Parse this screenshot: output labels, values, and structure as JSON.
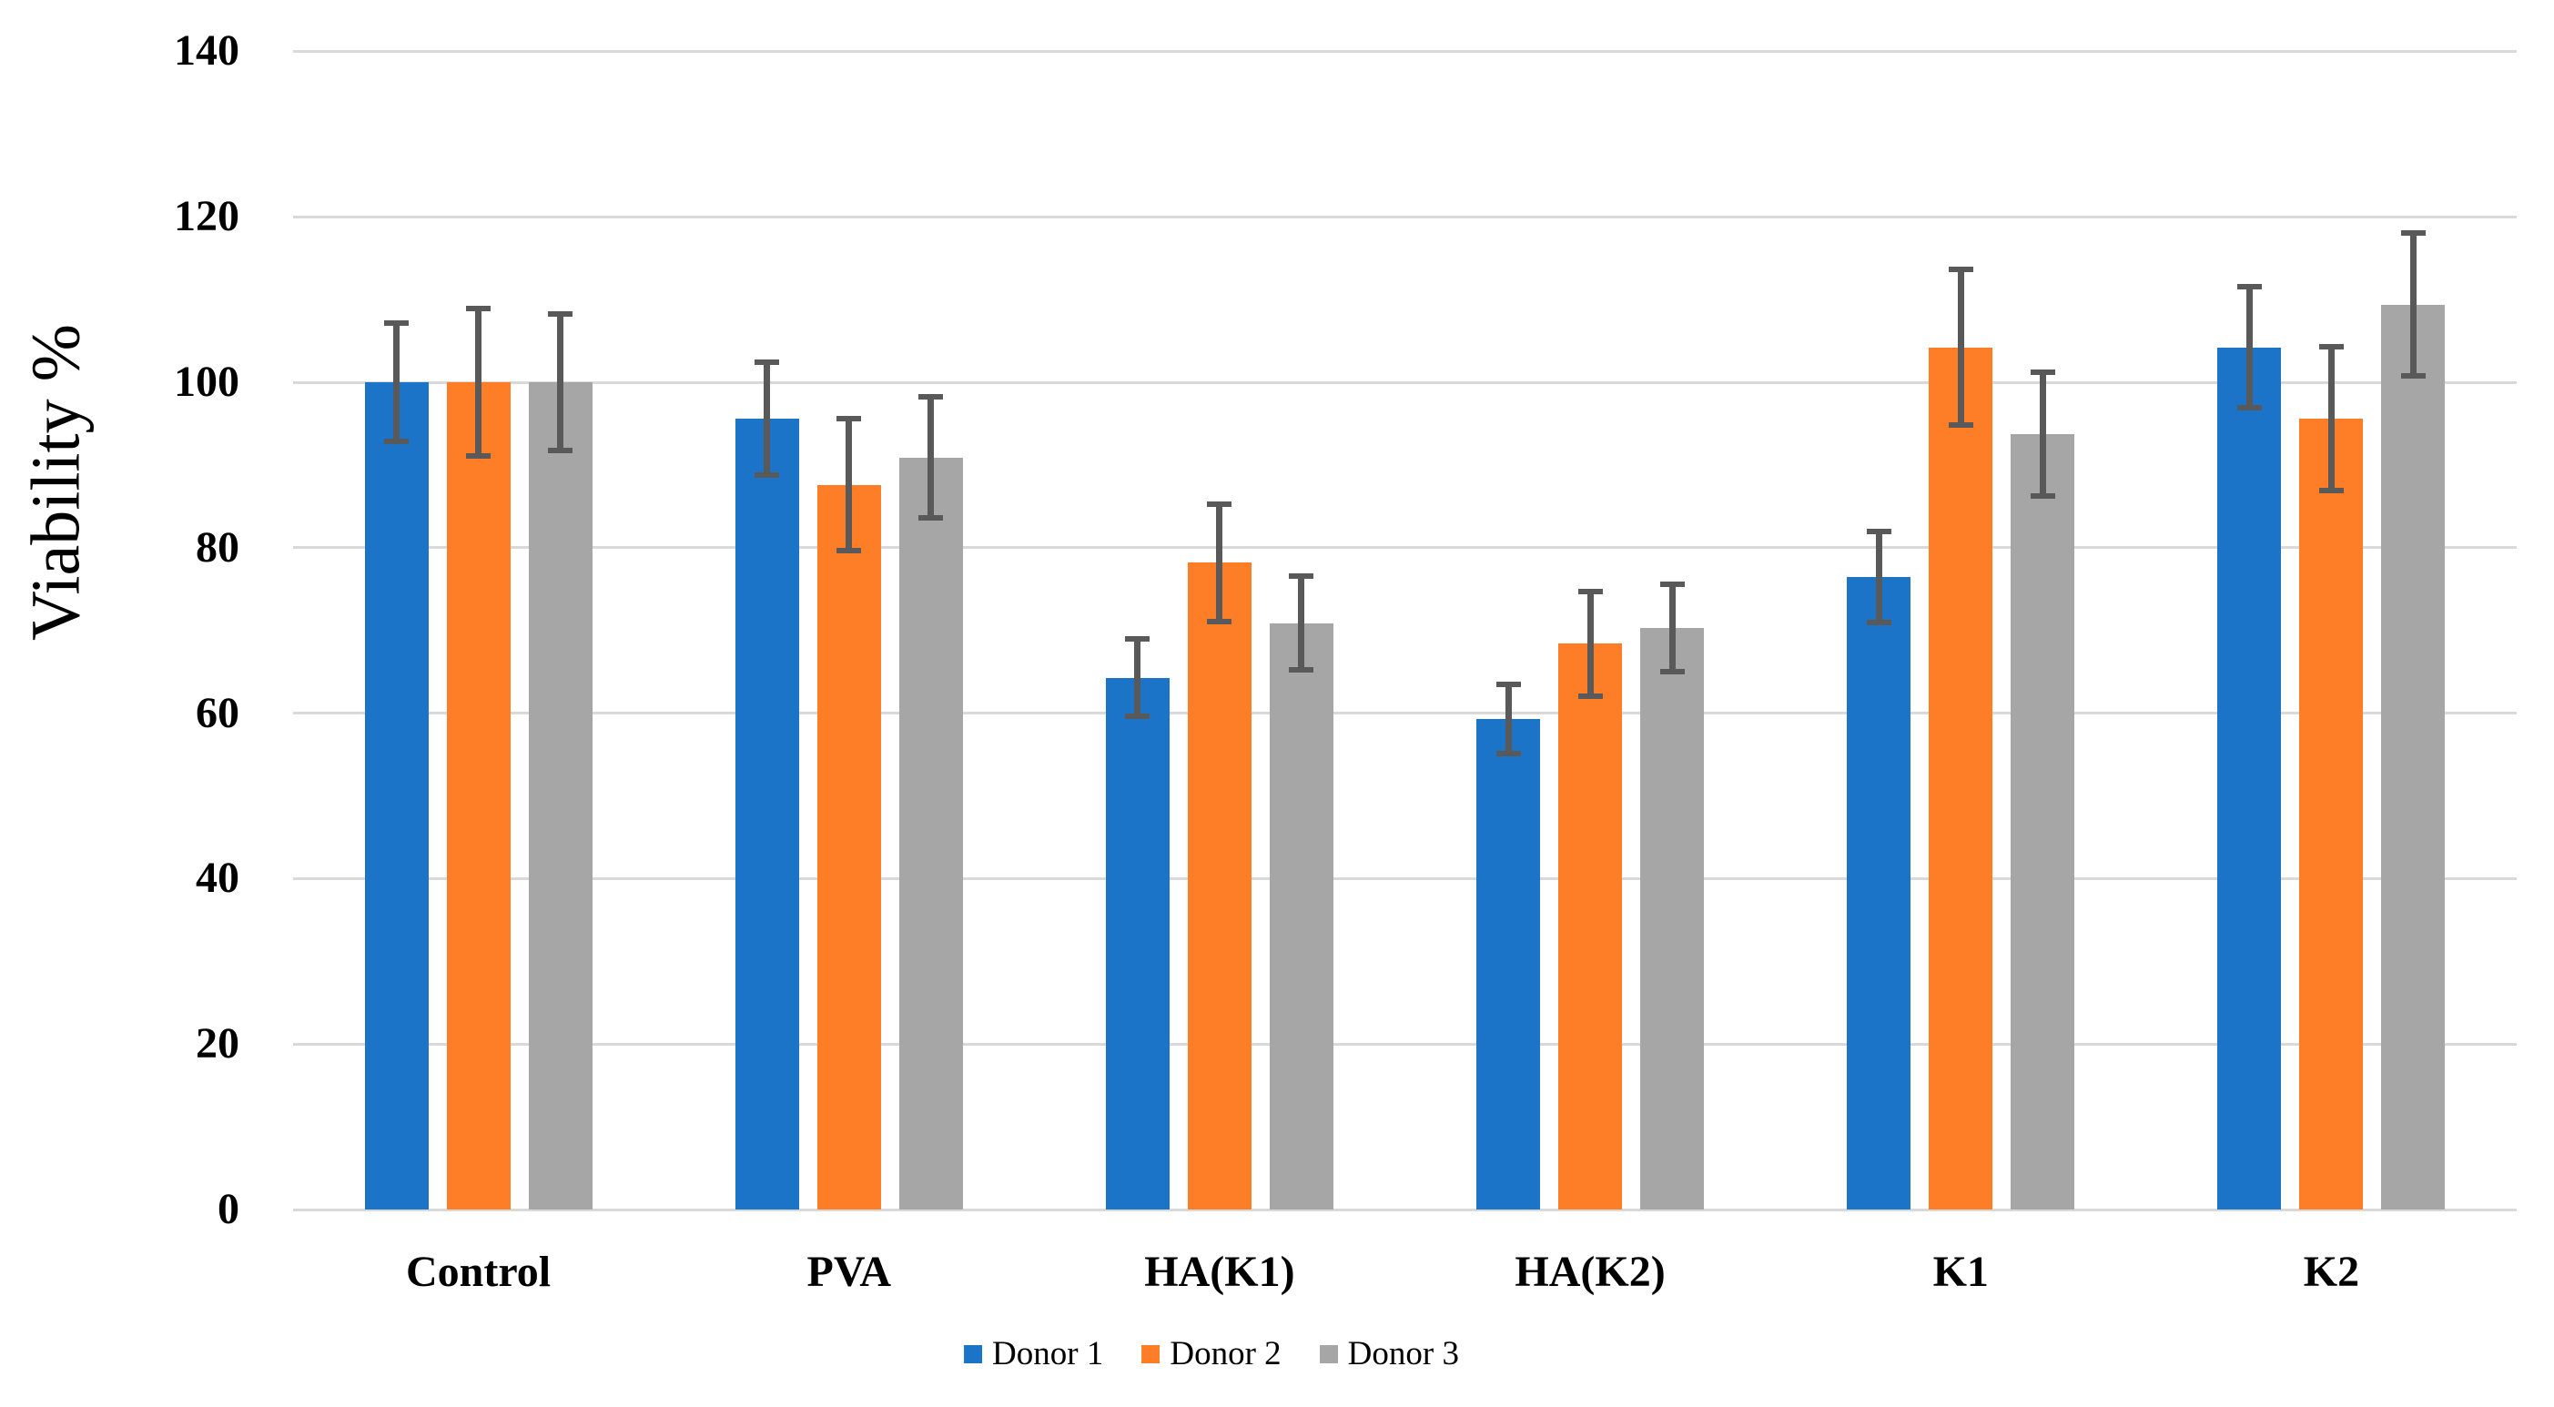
{
  "figure": {
    "background": "#FFFFFF"
  },
  "chart_data": {
    "type": "bar",
    "title": "",
    "ylabel": "Viability %",
    "xlabel": "",
    "ylim": [
      0,
      140
    ],
    "yticks": [
      0,
      20,
      40,
      60,
      80,
      100,
      120,
      140
    ],
    "grid": "horizontal gridlines on",
    "legend_position": "bottom-center",
    "categories": [
      "Control",
      "PVA",
      "HA(K1)",
      "HA(K2)",
      "K1",
      "K2"
    ],
    "series": [
      {
        "name": "Donor 1",
        "color": "#1B74C8",
        "values": [
          100.0,
          95.6,
          64.3,
          59.3,
          76.5,
          104.2
        ],
        "error_bars": [
          7.1,
          6.8,
          4.7,
          4.2,
          5.5,
          7.3
        ]
      },
      {
        "name": "Donor 2",
        "color": "#FD7E27",
        "values": [
          100.0,
          87.6,
          78.2,
          68.4,
          104.2,
          95.6
        ],
        "error_bars": [
          8.9,
          8.0,
          7.1,
          6.3,
          9.4,
          8.7
        ]
      },
      {
        "name": "Donor 3",
        "color": "#A6A6A6",
        "values": [
          100.0,
          90.9,
          70.9,
          70.3,
          93.7,
          109.4
        ],
        "error_bars": [
          8.2,
          7.3,
          5.7,
          5.3,
          7.5,
          8.6
        ]
      }
    ],
    "error_bar_color": "#595959",
    "gridline_color": "#D9D9D9",
    "axis_line_color": "#D9D9D9",
    "text_color": "#000000"
  }
}
